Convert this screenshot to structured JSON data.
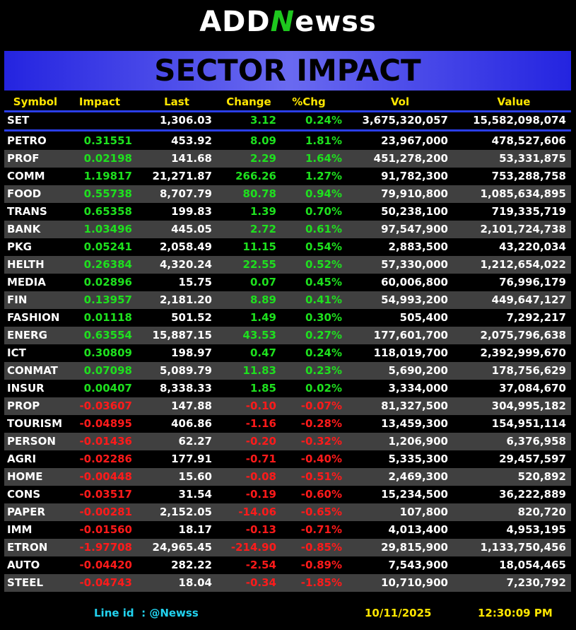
{
  "logo": {
    "left": "ADD",
    "mark": "N",
    "right": "ewss"
  },
  "banner": {
    "title": "SECTOR IMPACT"
  },
  "table": {
    "columns": [
      "Symbol",
      "Impact",
      "Last",
      "Change",
      "%Chg",
      "Vol",
      "Value"
    ],
    "index_row": {
      "symbol": "SET",
      "last": "1,306.03",
      "change": "3.12",
      "pct": "0.24%",
      "vol": "3,675,320,057",
      "value": "15,582,098,074"
    },
    "rows": [
      [
        "PETRO",
        "0.31551",
        "453.92",
        "8.09",
        "1.81%",
        "23,967,000",
        "478,527,606"
      ],
      [
        "PROF",
        "0.02198",
        "141.68",
        "2.29",
        "1.64%",
        "451,278,200",
        "53,331,875"
      ],
      [
        "COMM",
        "1.19817",
        "21,271.87",
        "266.26",
        "1.27%",
        "91,782,300",
        "753,288,758"
      ],
      [
        "FOOD",
        "0.55738",
        "8,707.79",
        "80.78",
        "0.94%",
        "79,910,800",
        "1,085,634,895"
      ],
      [
        "TRANS",
        "0.65358",
        "199.83",
        "1.39",
        "0.70%",
        "50,238,100",
        "719,335,719"
      ],
      [
        "BANK",
        "1.03496",
        "445.05",
        "2.72",
        "0.61%",
        "97,547,900",
        "2,101,724,738"
      ],
      [
        "PKG",
        "0.05241",
        "2,058.49",
        "11.15",
        "0.54%",
        "2,883,500",
        "43,220,034"
      ],
      [
        "HELTH",
        "0.26384",
        "4,320.24",
        "22.55",
        "0.52%",
        "57,330,000",
        "1,212,654,022"
      ],
      [
        "MEDIA",
        "0.02896",
        "15.75",
        "0.07",
        "0.45%",
        "60,006,800",
        "76,996,179"
      ],
      [
        "FIN",
        "0.13957",
        "2,181.20",
        "8.89",
        "0.41%",
        "54,993,200",
        "449,647,127"
      ],
      [
        "FASHION",
        "0.01118",
        "501.52",
        "1.49",
        "0.30%",
        "505,400",
        "7,292,217"
      ],
      [
        "ENERG",
        "0.63554",
        "15,887.15",
        "43.53",
        "0.27%",
        "177,601,700",
        "2,075,796,638"
      ],
      [
        "ICT",
        "0.30809",
        "198.97",
        "0.47",
        "0.24%",
        "118,019,700",
        "2,392,999,670"
      ],
      [
        "CONMAT",
        "0.07098",
        "5,089.79",
        "11.83",
        "0.23%",
        "5,690,200",
        "178,756,629"
      ],
      [
        "INSUR",
        "0.00407",
        "8,338.33",
        "1.85",
        "0.02%",
        "3,334,000",
        "37,084,670"
      ],
      [
        "PROP",
        "-0.03607",
        "147.88",
        "-0.10",
        "-0.07%",
        "81,327,500",
        "304,995,182"
      ],
      [
        "TOURISM",
        "-0.04895",
        "406.86",
        "-1.16",
        "-0.28%",
        "13,459,300",
        "154,951,114"
      ],
      [
        "PERSON",
        "-0.01436",
        "62.27",
        "-0.20",
        "-0.32%",
        "1,206,900",
        "6,376,958"
      ],
      [
        "AGRI",
        "-0.02286",
        "177.91",
        "-0.71",
        "-0.40%",
        "5,335,300",
        "29,457,597"
      ],
      [
        "HOME",
        "-0.00448",
        "15.60",
        "-0.08",
        "-0.51%",
        "2,469,300",
        "520,892"
      ],
      [
        "CONS",
        "-0.03517",
        "31.54",
        "-0.19",
        "-0.60%",
        "15,234,500",
        "36,222,889"
      ],
      [
        "PAPER",
        "-0.00281",
        "2,152.05",
        "-14.06",
        "-0.65%",
        "107,800",
        "820,720"
      ],
      [
        "IMM",
        "-0.01560",
        "18.17",
        "-0.13",
        "-0.71%",
        "4,013,400",
        "4,953,195"
      ],
      [
        "ETRON",
        "-1.97708",
        "24,965.45",
        "-214.90",
        "-0.85%",
        "29,815,900",
        "1,133,750,456"
      ],
      [
        "AUTO",
        "-0.04420",
        "282.22",
        "-2.54",
        "-0.89%",
        "7,543,900",
        "18,054,465"
      ],
      [
        "STEEL",
        "-0.04743",
        "18.04",
        "-0.34",
        "-1.85%",
        "10,710,900",
        "7,230,792"
      ]
    ],
    "positive_color": "#1ee01e",
    "negative_color": "#ff1a1a"
  },
  "footer": {
    "line_id": "Line id  : @Newss",
    "date": "10/11/2025",
    "time": "12:30:09 PM"
  }
}
